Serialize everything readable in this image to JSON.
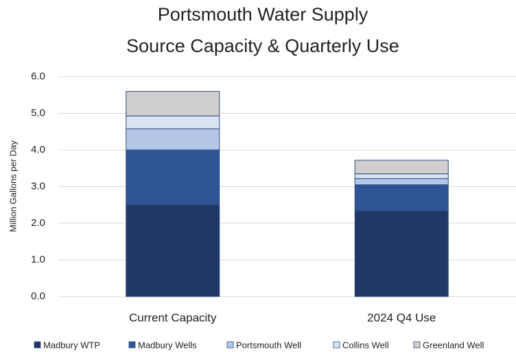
{
  "chart_data": {
    "type": "stacked_bar",
    "title": [
      "Portsmouth Water Supply",
      "Source Capacity & Quarterly Use"
    ],
    "y_label": "Million Gallons per Day",
    "categories": [
      "Current Capacity",
      "2024 Q4 Use"
    ],
    "series": [
      {
        "name": "Madbury WTP",
        "color": "#1f3864",
        "values": [
          2.5,
          2.34
        ]
      },
      {
        "name": "Madbury Wells",
        "color": "#2f5597",
        "values": [
          1.5,
          0.71
        ]
      },
      {
        "name": "Portsmouth Well",
        "color": "#b4c7e7",
        "values": [
          0.58,
          0.17
        ]
      },
      {
        "name": "Collins Well",
        "color": "#dae3f3",
        "values": [
          0.35,
          0.13
        ]
      },
      {
        "name": "Greenland Well",
        "color": "#d0cece",
        "values": [
          0.67,
          0.37
        ]
      }
    ],
    "ylim": [
      0,
      6
    ],
    "yticks": [
      {
        "value": 0,
        "label": "0.0"
      },
      {
        "value": 1,
        "label": "1.0"
      },
      {
        "value": 2,
        "label": "2.0"
      },
      {
        "value": 3,
        "label": "3.0"
      },
      {
        "value": 4,
        "label": "4.0"
      },
      {
        "value": 5,
        "label": "5.0"
      },
      {
        "value": 6,
        "label": "6.0"
      }
    ],
    "grid": true,
    "legend": "bottom"
  }
}
